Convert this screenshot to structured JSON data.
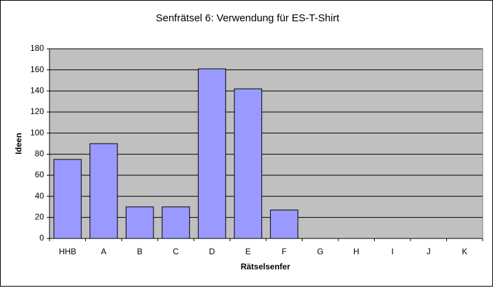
{
  "chart_data": {
    "type": "bar",
    "title": "Senfrätsel 6: Verwendung für ES-T-Shirt",
    "x_label": "Rätselsenfer",
    "y_label": "Ideen",
    "categories": [
      "HHB",
      "A",
      "B",
      "C",
      "D",
      "E",
      "F",
      "G",
      "H",
      "I",
      "J",
      "K"
    ],
    "values": [
      75,
      90,
      30,
      30,
      161,
      142,
      27,
      null,
      null,
      null,
      null,
      null
    ],
    "color": "#9999ff",
    "ylim": [
      0,
      180
    ],
    "yticks": [
      0,
      20,
      40,
      60,
      80,
      100,
      120,
      140,
      160,
      180
    ],
    "grid": true
  }
}
